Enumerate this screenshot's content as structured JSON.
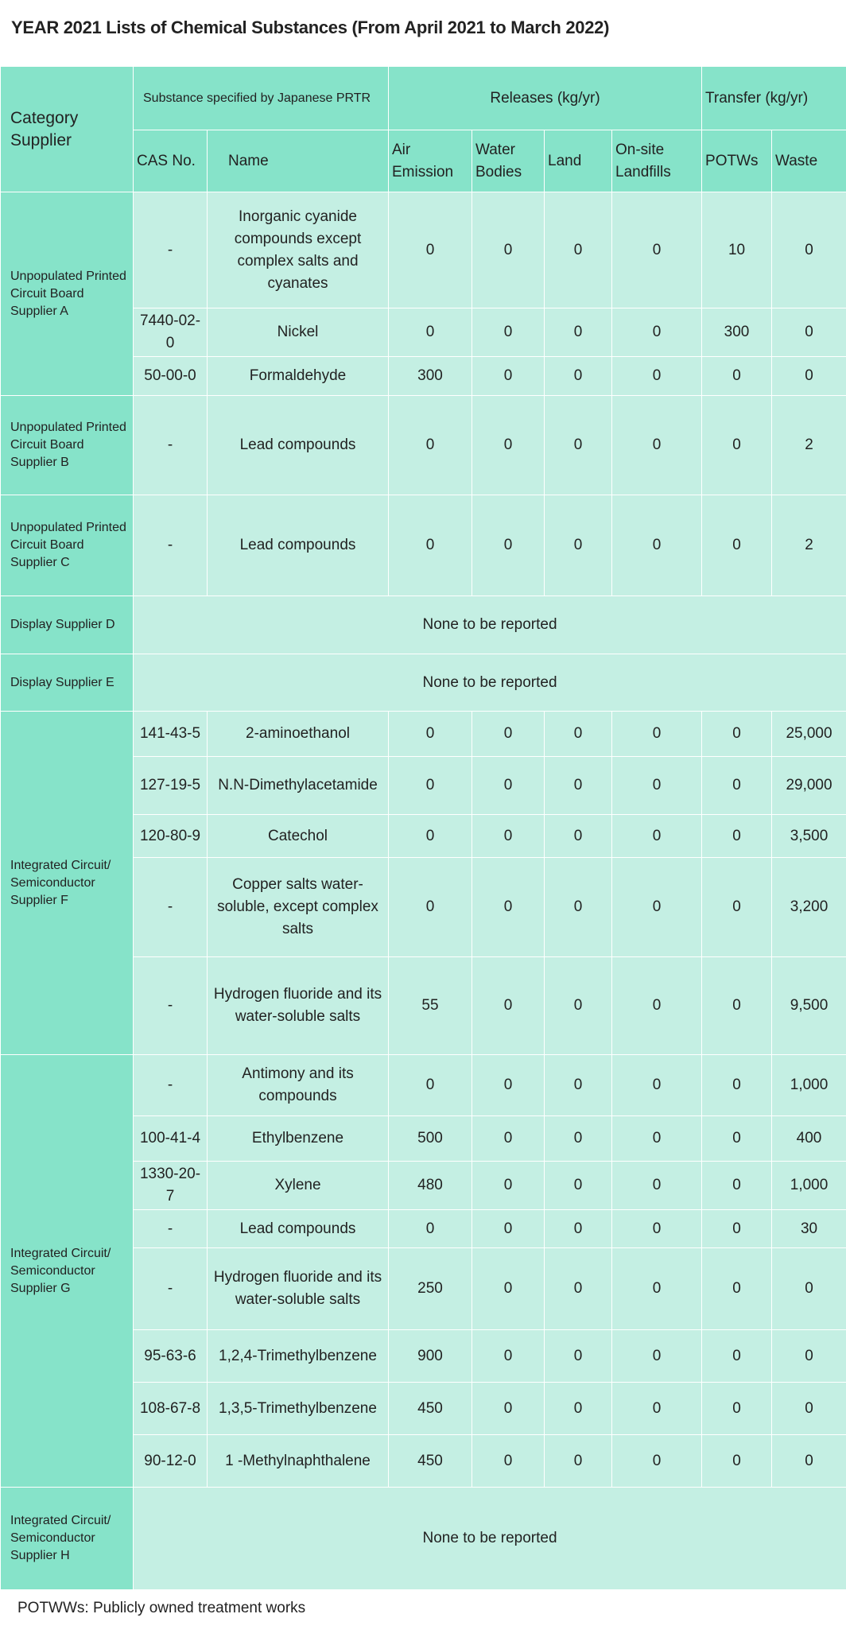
{
  "title": "YEAR 2021 Lists of Chemical Substances (From April 2021 to March 2022)",
  "header": {
    "category": "Category Supplier",
    "substance": "Substance specified by Japanese PRTR",
    "releases": "Releases (kg/yr)",
    "transfer": "Transfer (kg/yr)",
    "cols": [
      "CAS No.",
      "Name",
      "Air Emission",
      "Water Bodies",
      "Land",
      "On-site Landfills",
      "POTWs",
      "Waste"
    ]
  },
  "groups": [
    {
      "category": "Unpopulated Printed Circuit Board Supplier A",
      "rows": [
        [
          "-",
          "Inorganic cyanide compounds except complex salts and cyanates",
          "0",
          "0",
          "0",
          "0",
          "10",
          "0"
        ],
        [
          "7440-02-0",
          "Nickel",
          "0",
          "0",
          "0",
          "0",
          "300",
          "0"
        ],
        [
          "50-00-0",
          "Formaldehyde",
          "300",
          "0",
          "0",
          "0",
          "0",
          "0"
        ]
      ]
    },
    {
      "category": "Unpopulated Printed Circuit Board Supplier B",
      "rows": [
        [
          "-",
          "Lead compounds",
          "0",
          "0",
          "0",
          "0",
          "0",
          "2"
        ]
      ]
    },
    {
      "category": "Unpopulated Printed Circuit Board Supplier C",
      "rows": [
        [
          "-",
          "Lead compounds",
          "0",
          "0",
          "0",
          "0",
          "0",
          "2"
        ]
      ]
    },
    {
      "category": "Display Supplier D",
      "none": "None to be reported"
    },
    {
      "category": "Display Supplier E",
      "none": "None to be reported"
    },
    {
      "category": "Integrated Circuit/ Semiconductor Supplier F",
      "rows": [
        [
          "141-43-5",
          "2-aminoethanol",
          "0",
          "0",
          "0",
          "0",
          "0",
          "25,000"
        ],
        [
          "127-19-5",
          "N.N-Dimethylacetamide",
          "0",
          "0",
          "0",
          "0",
          "0",
          "29,000"
        ],
        [
          "120-80-9",
          "Catechol",
          "0",
          "0",
          "0",
          "0",
          "0",
          "3,500"
        ],
        [
          "-",
          "Copper salts water-soluble, except complex salts",
          "0",
          "0",
          "0",
          "0",
          "0",
          "3,200"
        ],
        [
          "-",
          "Hydrogen fluoride and its water-soluble salts",
          "55",
          "0",
          "0",
          "0",
          "0",
          "9,500"
        ]
      ]
    },
    {
      "category": "Integrated Circuit/ Semiconductor Supplier G",
      "rows": [
        [
          "-",
          "Antimony and its compounds",
          "0",
          "0",
          "0",
          "0",
          "0",
          "1,000"
        ],
        [
          "100-41-4",
          "Ethylbenzene",
          "500",
          "0",
          "0",
          "0",
          "0",
          "400"
        ],
        [
          "1330-20-7",
          "Xylene",
          "480",
          "0",
          "0",
          "0",
          "0",
          "1,000"
        ],
        [
          "-",
          "Lead compounds",
          "0",
          "0",
          "0",
          "0",
          "0",
          "30"
        ],
        [
          "-",
          "Hydrogen fluoride and its water-soluble salts",
          "250",
          "0",
          "0",
          "0",
          "0",
          "0"
        ],
        [
          "95-63-6",
          "1,2,4-Trimethylbenzene",
          "900",
          "0",
          "0",
          "0",
          "0",
          "0"
        ],
        [
          "108-67-8",
          "1,3,5-Trimethylbenzene",
          "450",
          "0",
          "0",
          "0",
          "0",
          "0"
        ],
        [
          "90-12-0",
          "1 -Methylnaphthalene",
          "450",
          "0",
          "0",
          "0",
          "0",
          "0"
        ]
      ]
    },
    {
      "category": "Integrated Circuit/ Semiconductor Supplier H",
      "none": "None to be reported"
    }
  ],
  "footnote": "POTWWs: Publicly owned treatment works"
}
